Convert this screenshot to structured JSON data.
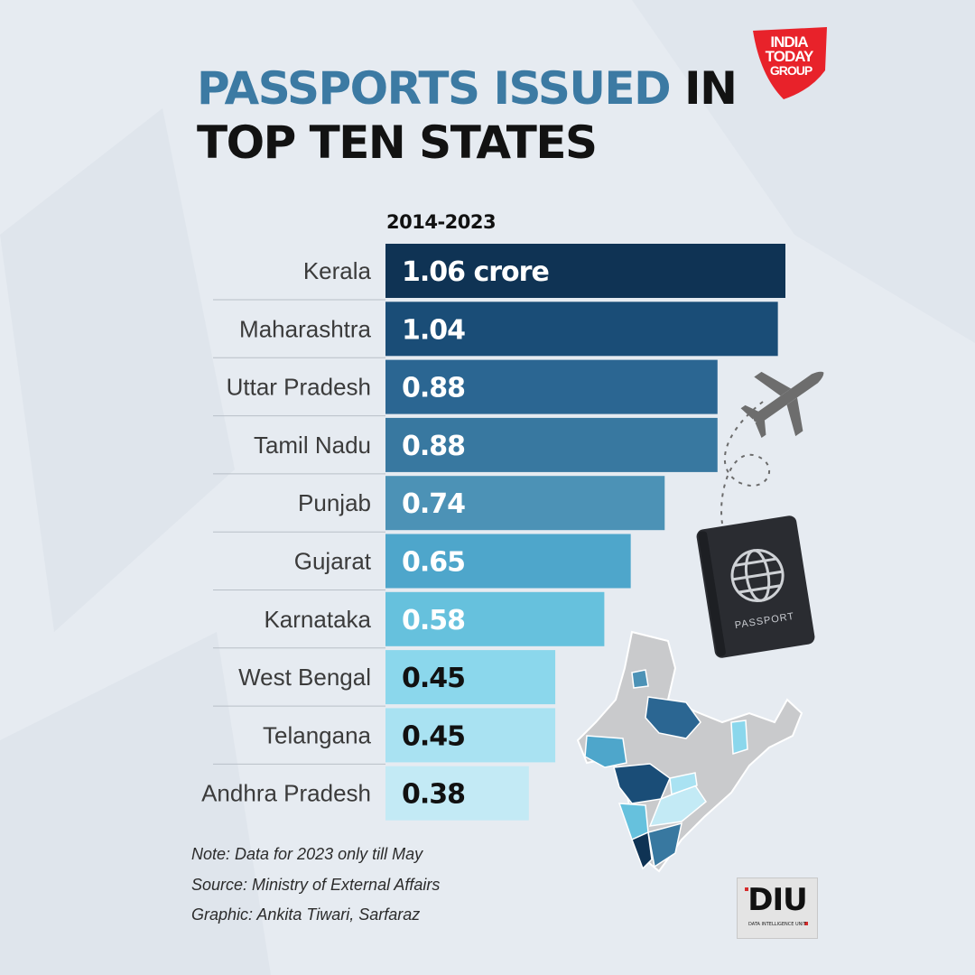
{
  "title": {
    "accent": "PASSPORTS ISSUED",
    "rest_line1": " IN",
    "line2": "TOP TEN STATES"
  },
  "period": "2014-2023",
  "chart_data": {
    "type": "bar",
    "orientation": "horizontal",
    "title": "PASSPORTS ISSUED IN TOP TEN STATES",
    "subtitle": "2014-2023",
    "categories": [
      "Kerala",
      "Maharashtra",
      "Uttar Pradesh",
      "Tamil Nadu",
      "Punjab",
      "Gujarat",
      "Karnataka",
      "West Bengal",
      "Telangana",
      "Andhra Pradesh"
    ],
    "values": [
      1.06,
      1.04,
      0.88,
      0.88,
      0.74,
      0.65,
      0.58,
      0.45,
      0.45,
      0.38
    ],
    "value_labels": [
      "1.06 crore",
      "1.04",
      "0.88",
      "0.88",
      "0.74",
      "0.65",
      "0.58",
      "0.45",
      "0.45",
      "0.38"
    ],
    "bar_colors": [
      "#0f3354",
      "#1a4d77",
      "#2b6692",
      "#3878a0",
      "#4c92b6",
      "#4ea6cb",
      "#66c1dd",
      "#8bd7ec",
      "#a9e2f2",
      "#c3eaf5"
    ],
    "label_colors": [
      "#ffffff",
      "#ffffff",
      "#ffffff",
      "#ffffff",
      "#ffffff",
      "#ffffff",
      "#ffffff",
      "#111111",
      "#111111",
      "#111111"
    ],
    "xlim": [
      0,
      1.06
    ],
    "grid": false,
    "legend": "none"
  },
  "logo": {
    "line1": "INDIA",
    "line2": "TODAY",
    "line3": "GROUP",
    "color": "#e8222a"
  },
  "notes": [
    "Note: Data for 2023 only till May",
    "Source: Ministry of External Affairs",
    "Graphic: Ankita Tiwari, Sarfaraz"
  ],
  "diu": {
    "text": "DIU",
    "subtitle": "DATA INTELLIGENCE UNIT"
  },
  "passport_label": "PASSPORT",
  "icons": [
    "airplane-icon",
    "passport-icon",
    "globe-icon",
    "india-map-icon"
  ]
}
